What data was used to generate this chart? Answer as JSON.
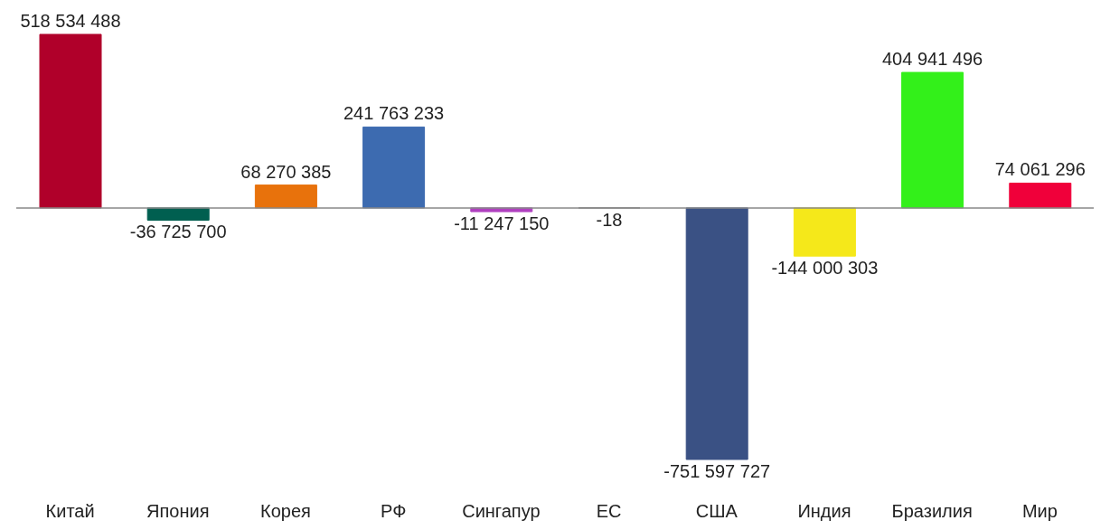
{
  "chart_data": {
    "type": "bar",
    "categories": [
      "Китай",
      "Япония",
      "Корея",
      "РФ",
      "Сингапур",
      "ЕС",
      "США",
      "Индия",
      "Бразилия",
      "Мир"
    ],
    "values": [
      518534488,
      -36725700,
      68270385,
      241763233,
      -11247150,
      -18,
      -751597727,
      -144000303,
      404941496,
      74061296
    ],
    "value_labels": [
      "518 534 488",
      "-36 725 700",
      "68 270 385",
      "241 763 233",
      "-11 247 150",
      "-18",
      "-751 597 727",
      "-144 000 303",
      "404 941 496",
      "74 061 296"
    ],
    "colors": [
      "#b0002a",
      "#005f50",
      "#e8720c",
      "#3d6bb0",
      "#b040c0",
      "#7f7f7f",
      "#3a5184",
      "#f5e81a",
      "#33f01a",
      "#f0003a"
    ],
    "grid": false,
    "legend": false
  }
}
